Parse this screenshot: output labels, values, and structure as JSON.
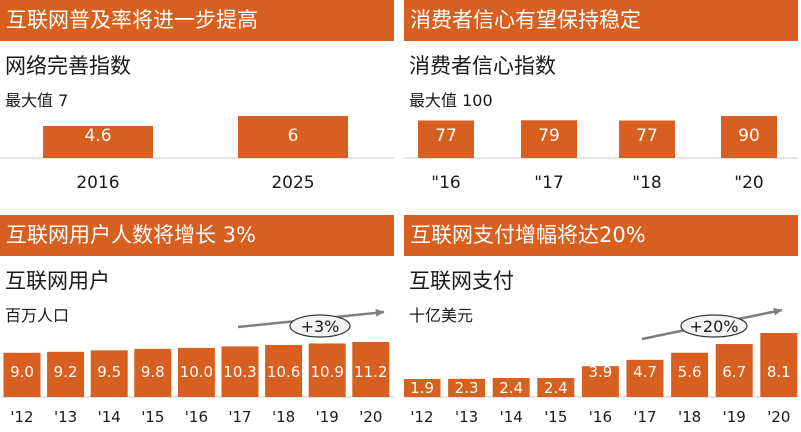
{
  "colors": {
    "bar": "#d75f1f",
    "banner": "#d75f1f",
    "axis": "#c9c9c9",
    "arrow": "#7f7f7f",
    "badge_fill": "#f4f4f4"
  },
  "panels": [
    {
      "banner": "互联网普及率将进一步提高",
      "subtitle": "网络完善指数",
      "unit": "最大值 7",
      "growth": ""
    },
    {
      "banner": "消费者信心有望保持稳定",
      "subtitle": "消费者信心指数",
      "unit": "最大值  100",
      "growth": ""
    },
    {
      "banner": "互联网用户人数将增长 3%",
      "subtitle": "互联网用户",
      "unit": "百万人口",
      "growth": "+3%"
    },
    {
      "banner": "互联网支付增幅将达20%",
      "subtitle": "互联网支付",
      "unit": "十亿美元",
      "growth": "+20%"
    }
  ],
  "chart_data": [
    {
      "type": "bar",
      "title": "网络完善指数",
      "subtitle": "最大值 7",
      "categories": [
        "2016",
        "2025"
      ],
      "values": [
        4.6,
        6.0
      ],
      "ylim": [
        0,
        7
      ]
    },
    {
      "type": "bar",
      "title": "消费者信心指数",
      "subtitle": "最大值  100",
      "categories": [
        "\"16",
        "\"17",
        "\"18",
        "\"20"
      ],
      "values": [
        77,
        79,
        77,
        90
      ],
      "ylim": [
        0,
        100
      ]
    },
    {
      "type": "bar",
      "title": "互联网用户",
      "subtitle": "百万人口",
      "categories": [
        "'12",
        "'13",
        "'14",
        "'15",
        "'16",
        "'17",
        "'18",
        "'19",
        "'20"
      ],
      "values": [
        9.0,
        9.2,
        9.5,
        9.8,
        10.0,
        10.3,
        10.6,
        10.9,
        11.2
      ],
      "value_labels": [
        "9.0",
        "9.2",
        "9.5",
        "9.8",
        "10.0",
        "10.3",
        "10.6",
        "10.9",
        "11.2"
      ],
      "annotation": "+3%"
    },
    {
      "type": "bar",
      "title": "互联网支付",
      "subtitle": "十亿美元",
      "categories": [
        "'12",
        "'13",
        "'14",
        "'15",
        "'16",
        "'17",
        "'18",
        "'19",
        "'20"
      ],
      "values": [
        1.9,
        2.3,
        2.4,
        2.4,
        3.9,
        4.7,
        5.6,
        6.7,
        8.1
      ],
      "value_labels": [
        "1.9",
        "2.3",
        "2.4",
        "2.4",
        "3.9",
        "4.7",
        "5.6",
        "6.7",
        "8.1"
      ],
      "annotation": "+20%"
    }
  ]
}
